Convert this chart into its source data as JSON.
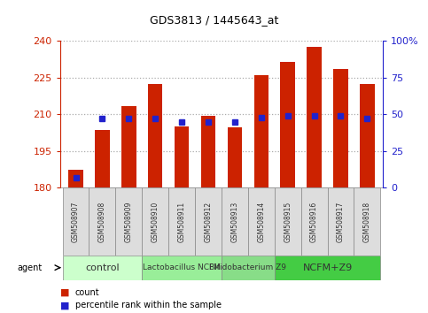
{
  "title": "GDS3813 / 1445643_at",
  "categories": [
    "GSM508907",
    "GSM508908",
    "GSM508909",
    "GSM508910",
    "GSM508911",
    "GSM508912",
    "GSM508913",
    "GSM508914",
    "GSM508915",
    "GSM508916",
    "GSM508917",
    "GSM508918"
  ],
  "bar_values": [
    187.5,
    203.5,
    213.5,
    222.5,
    205.0,
    209.5,
    204.5,
    226.0,
    231.5,
    237.5,
    228.5,
    222.5
  ],
  "percentile_values": [
    7,
    47,
    47,
    47,
    45,
    45,
    45,
    48,
    49,
    49,
    49,
    47
  ],
  "ymin": 180,
  "ymax": 240,
  "yticks": [
    180,
    195,
    210,
    225,
    240
  ],
  "y2min": 0,
  "y2max": 100,
  "y2ticks": [
    0,
    25,
    50,
    75,
    100
  ],
  "bar_color": "#cc2200",
  "percentile_color": "#2222cc",
  "bar_bottom": 180,
  "groups": [
    {
      "label": "control",
      "start": 0,
      "end": 2,
      "color": "#ccffcc",
      "font_size": 8
    },
    {
      "label": "Lactobacillus NCFM",
      "start": 3,
      "end": 5,
      "color": "#99ee99",
      "font_size": 6.5
    },
    {
      "label": "Bifidobacterium Z9",
      "start": 6,
      "end": 7,
      "color": "#88dd88",
      "font_size": 6.5
    },
    {
      "label": "NCFM+Z9",
      "start": 8,
      "end": 11,
      "color": "#44cc44",
      "font_size": 8
    }
  ],
  "left_axis_color": "#cc2200",
  "right_axis_color": "#2222cc",
  "grid_color": "#aaaaaa",
  "xticklabel_bg": "#dddddd"
}
